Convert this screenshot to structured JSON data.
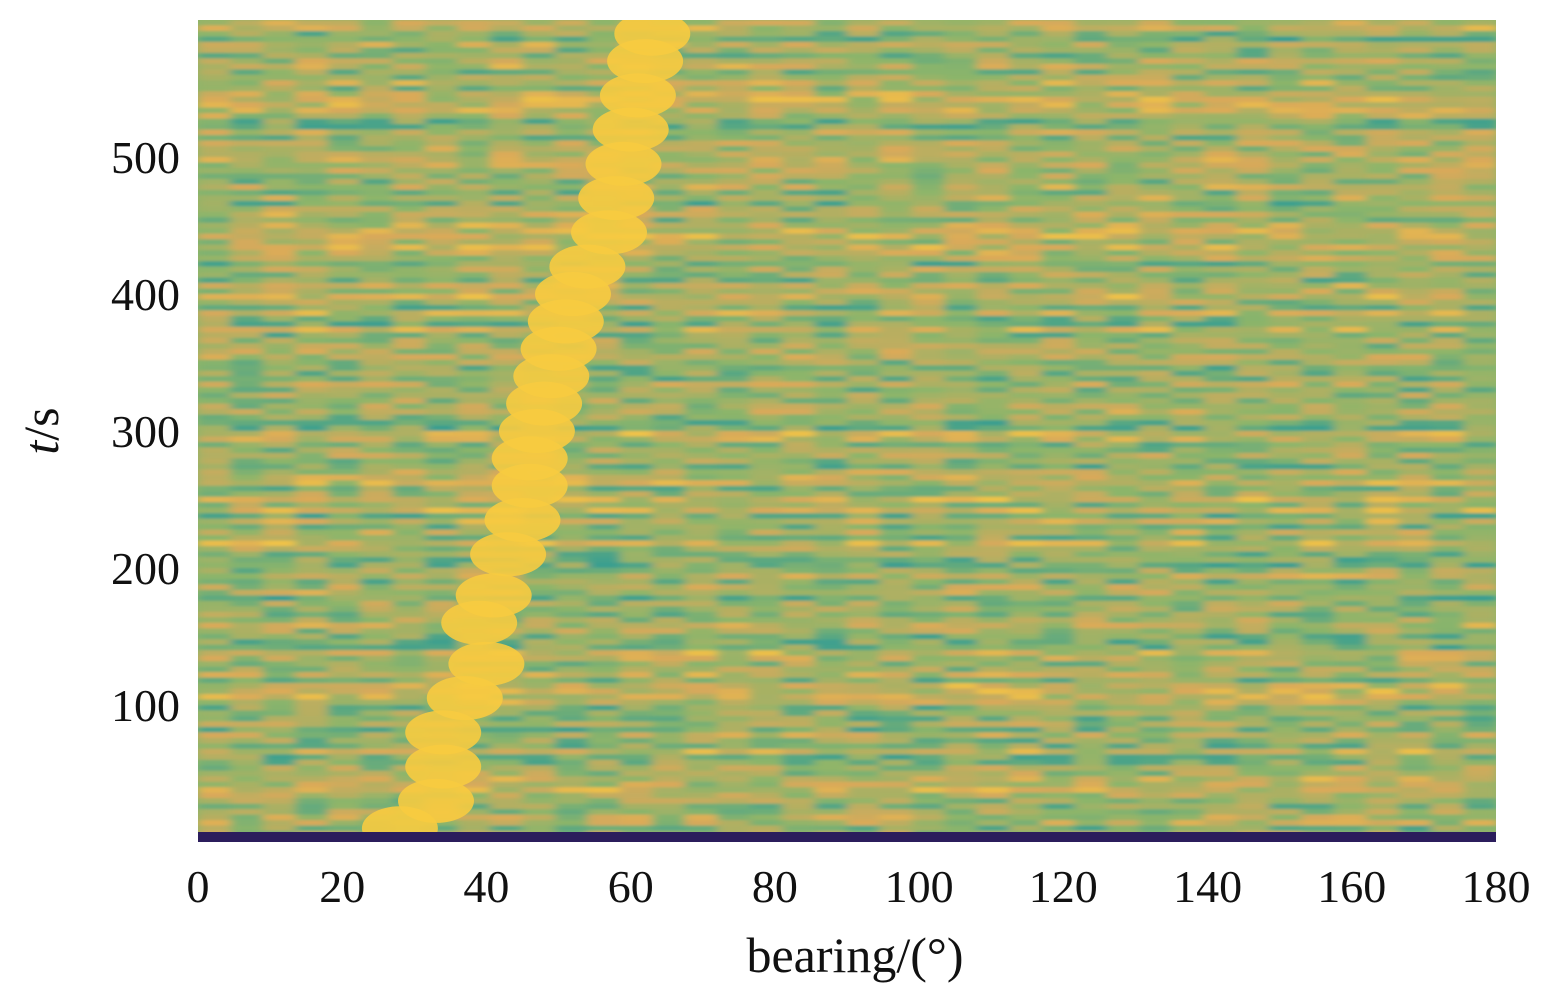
{
  "chart_data": {
    "type": "heatmap",
    "title": "",
    "xlabel": "bearing/(°)",
    "ylabel_italic": "t",
    "ylabel_rest": "/s",
    "xlim": [
      0,
      180
    ],
    "ylim": [
      0,
      600
    ],
    "xticks": [
      0,
      20,
      40,
      60,
      80,
      100,
      120,
      140,
      160,
      180
    ],
    "yticks": [
      100,
      200,
      300,
      400,
      500
    ],
    "grid": false,
    "colormap": {
      "low": "#2b1d5c",
      "mid_low": "#2f9c95",
      "mid": "#8db56a",
      "mid_high": "#d9a95a",
      "high": "#ffd43a"
    },
    "ridge": {
      "description_series": "peak bearing vs time",
      "t": [
        10,
        30,
        55,
        80,
        105,
        130,
        160,
        180,
        210,
        235,
        260,
        280,
        300,
        320,
        340,
        360,
        380,
        400,
        420,
        445,
        470,
        495,
        520,
        545,
        570,
        590
      ],
      "bearing": [
        28,
        33,
        34,
        34,
        37,
        40,
        39,
        41,
        43,
        45,
        46,
        46,
        47,
        48,
        49,
        50,
        51,
        52,
        54,
        57,
        58,
        59,
        60,
        61,
        62,
        63
      ]
    }
  }
}
